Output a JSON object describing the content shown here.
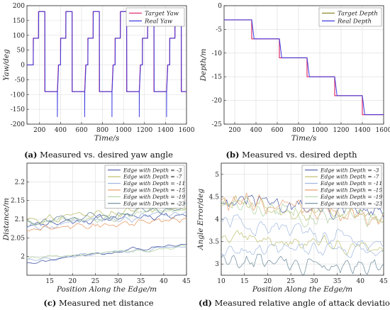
{
  "captions": {
    "a": {
      "tag": "(a)",
      "text": "Measured vs. desired yaw angle"
    },
    "b": {
      "tag": "(b)",
      "text": "Measured vs. desired depth"
    },
    "c": {
      "tag": "(c)",
      "text": "Measured net distance"
    },
    "d": {
      "tag": "(d)",
      "text": "Measured relative angle of attack deviation"
    }
  },
  "colors": {
    "target": "#8a8a2a",
    "real": "#3a3ae0",
    "yaw_red": "#e0306a",
    "depth": [
      "#4a5aa8",
      "#c0c070",
      "#a0b8e0",
      "#e8a070",
      "#b0d0a0",
      "#6a8a9a"
    ]
  },
  "chart_data": [
    {
      "id": "a",
      "type": "line",
      "xlabel": "Time/s",
      "ylabel": "Yaw/deg",
      "xlim": [
        80,
        1600
      ],
      "ylim": [
        -200,
        200
      ],
      "xticks": [
        200,
        400,
        600,
        800,
        1000,
        1200,
        1400,
        1600
      ],
      "yticks": [
        -200,
        -150,
        -100,
        -50,
        0,
        50,
        100,
        150,
        200
      ],
      "grid": true,
      "legend": "top-right",
      "series": [
        {
          "name": "Target Yaw",
          "kind": "yaw_target"
        },
        {
          "name": "Real Yaw",
          "kind": "yaw_real"
        }
      ],
      "period_s": 260,
      "cycle_start_s": 120,
      "cycle_levels_deg": [
        0,
        90,
        180,
        -90
      ],
      "cycle_segment_s": [
        20,
        50,
        60,
        120
      ]
    },
    {
      "id": "b",
      "type": "line",
      "xlabel": "Time/s",
      "ylabel": "Depth/m",
      "xlim": [
        100,
        1600
      ],
      "ylim": [
        -25,
        0
      ],
      "xticks": [
        200,
        400,
        600,
        800,
        1000,
        1200,
        1400,
        1600
      ],
      "yticks": [
        -25,
        -20,
        -15,
        -10,
        -5,
        0
      ],
      "grid": true,
      "legend": "top-right",
      "series": [
        {
          "name": "Target Depth",
          "kind": "step"
        },
        {
          "name": "Real Depth",
          "kind": "step_lag"
        }
      ],
      "steps": [
        {
          "t": 100,
          "depth": -3
        },
        {
          "t": 360,
          "depth": -7
        },
        {
          "t": 620,
          "depth": -11
        },
        {
          "t": 880,
          "depth": -15
        },
        {
          "t": 1140,
          "depth": -19
        },
        {
          "t": 1400,
          "depth": -23
        }
      ]
    },
    {
      "id": "c",
      "type": "line",
      "xlabel": "Position Along the Edge/m",
      "ylabel": "Distance/m",
      "xlim": [
        10,
        45
      ],
      "ylim": [
        1.95,
        2.25
      ],
      "xticks": [
        15,
        20,
        25,
        30,
        35,
        40,
        45
      ],
      "yticks": [
        2,
        2.05,
        2.1,
        2.15,
        2.2
      ],
      "grid": true,
      "legend": "top-right",
      "series": [
        {
          "name": "Edge with Depth = -3",
          "start": 2.088,
          "end": 2.116
        },
        {
          "name": "Edge with Depth = -7",
          "start": 2.1,
          "end": 2.135
        },
        {
          "name": "Edge with Depth = -11",
          "start": 2.08,
          "end": 2.115
        },
        {
          "name": "Edge with Depth = -15",
          "start": 2.07,
          "end": 2.1
        },
        {
          "name": "Edge with Depth = -19",
          "start": 2.09,
          "end": 2.125
        },
        {
          "name": "Edge with Depth = -23",
          "start": 2.095,
          "end": 2.13
        }
      ],
      "lower_band": [
        {
          "start": 1.985,
          "end": 2.035
        },
        {
          "start": 1.99,
          "end": 2.03
        },
        {
          "start": 1.995,
          "end": 2.028
        }
      ]
    },
    {
      "id": "d",
      "type": "line",
      "xlabel": "Position Along the Edge/m",
      "ylabel": "Angle Error/deg",
      "xlim": [
        10,
        45
      ],
      "ylim": [
        2.75,
        5.25
      ],
      "xticks": [
        10,
        15,
        20,
        25,
        30,
        35,
        40,
        45
      ],
      "yticks": [
        3,
        3.5,
        4,
        4.5,
        5
      ],
      "grid": true,
      "legend": "top-right",
      "series": [
        {
          "name": "Edge with Depth = -3",
          "start": 4.45,
          "end": 4.1
        },
        {
          "name": "Edge with Depth = -7",
          "start": 4.35,
          "end": 4.05
        },
        {
          "name": "Edge with Depth = -11",
          "start": 3.95,
          "end": 3.55
        },
        {
          "name": "Edge with Depth = -15",
          "start": 4.4,
          "end": 4.05
        },
        {
          "name": "Edge with Depth = -19",
          "start": 4.3,
          "end": 4.0
        },
        {
          "name": "Edge with Depth = -23",
          "start": 3.1,
          "end": 2.98
        }
      ],
      "extra_series": [
        {
          "start": 3.6,
          "end": 3.35
        },
        {
          "start": 3.35,
          "end": 3.3
        }
      ]
    }
  ]
}
